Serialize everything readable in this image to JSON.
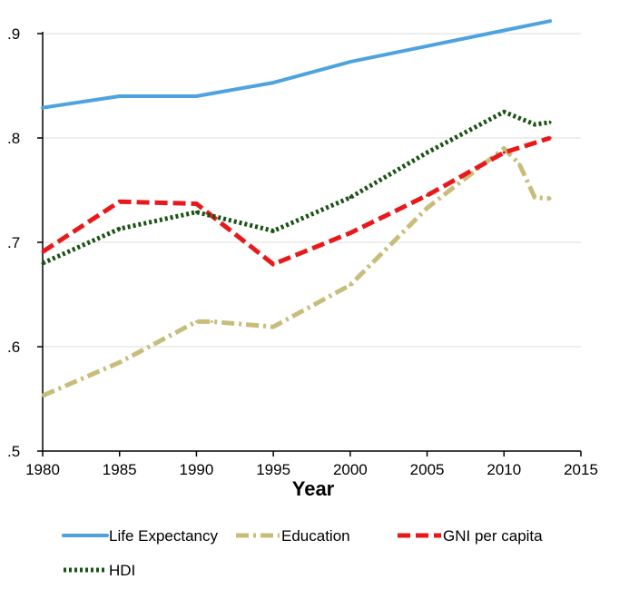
{
  "chart_data": {
    "type": "line",
    "title": "",
    "xlabel": "Year",
    "ylabel": "",
    "xlim": [
      1980,
      2015
    ],
    "ylim": [
      0.5,
      0.9
    ],
    "x_ticks": [
      {
        "value": 1980,
        "label": "1980"
      },
      {
        "value": 1985,
        "label": "1985"
      },
      {
        "value": 1990,
        "label": "1990"
      },
      {
        "value": 1995,
        "label": "1995"
      },
      {
        "value": 2000,
        "label": "2000"
      },
      {
        "value": 2005,
        "label": "2005"
      },
      {
        "value": 2010,
        "label": "2010"
      },
      {
        "value": 2015,
        "label": "2015"
      }
    ],
    "y_ticks": [
      {
        "value": 0.5,
        "label": ".5"
      },
      {
        "value": 0.6,
        "label": ".6"
      },
      {
        "value": 0.7,
        "label": ".7"
      },
      {
        "value": 0.8,
        "label": ".8"
      },
      {
        "value": 0.9,
        "label": ".9"
      }
    ],
    "grid": "horizontal",
    "legend_position": "bottom",
    "series": [
      {
        "name": "Life Expectancy",
        "color": "#4ea3df",
        "style": "solid",
        "x": [
          1980,
          1985,
          1990,
          1995,
          2000,
          2005,
          2010,
          2013
        ],
        "y": [
          0.829,
          0.84,
          0.84,
          0.853,
          0.873,
          0.888,
          0.903,
          0.912
        ]
      },
      {
        "name": "Education",
        "color": "#c8bd7a",
        "style": "dash-dot",
        "x": [
          1980,
          1985,
          1990,
          1991,
          1995,
          2000,
          2005,
          2010,
          2011,
          2012,
          2013
        ],
        "y": [
          0.553,
          0.585,
          0.624,
          0.624,
          0.619,
          0.659,
          0.733,
          0.79,
          0.775,
          0.743,
          0.742
        ]
      },
      {
        "name": "GNI per capita",
        "color": "#e8191b",
        "style": "dashed",
        "x": [
          1980,
          1985,
          1990,
          1995,
          2000,
          2005,
          2010,
          2013
        ],
        "y": [
          0.691,
          0.739,
          0.737,
          0.679,
          0.709,
          0.745,
          0.786,
          0.8
        ]
      },
      {
        "name": "HDI",
        "color": "#1a5214",
        "style": "dotted",
        "x": [
          1980,
          1985,
          1990,
          1995,
          2000,
          2005,
          2010,
          2012,
          2013
        ],
        "y": [
          0.68,
          0.713,
          0.729,
          0.711,
          0.743,
          0.786,
          0.825,
          0.813,
          0.815
        ]
      }
    ]
  }
}
